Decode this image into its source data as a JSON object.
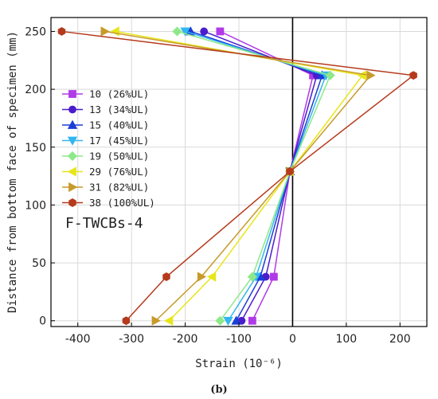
{
  "chart_data": {
    "type": "line",
    "xlabel": "Strain (10⁻⁶)",
    "ylabel": "Distance from bottom face of specimen (mm)",
    "xlim": [
      -450,
      250
    ],
    "ylim": [
      -5,
      262
    ],
    "xticks": [
      -400,
      -300,
      -200,
      -100,
      0,
      100,
      200
    ],
    "yticks": [
      0,
      50,
      100,
      150,
      200,
      250
    ],
    "grid": true,
    "legend_position": "left",
    "annotation": "F-TWCBs-4",
    "caption": "(b)",
    "x_reference_line": 0,
    "series": [
      {
        "name": "10 (26%UL)",
        "color": "#b03ae8",
        "marker": "square",
        "points": [
          [
            -75,
            0
          ],
          [
            -35,
            38
          ],
          [
            -5,
            129
          ],
          [
            38,
            212
          ],
          [
            -135,
            250
          ]
        ]
      },
      {
        "name": "13 (34%UL)",
        "color": "#4b1ccc",
        "marker": "circle",
        "points": [
          [
            -95,
            0
          ],
          [
            -50,
            38
          ],
          [
            -5,
            129
          ],
          [
            45,
            212
          ],
          [
            -165,
            250
          ]
        ]
      },
      {
        "name": "15 (40%UL)",
        "color": "#1b3fd6",
        "marker": "triangle-up",
        "points": [
          [
            -105,
            0
          ],
          [
            -60,
            38
          ],
          [
            -5,
            129
          ],
          [
            55,
            212
          ],
          [
            -190,
            250
          ]
        ]
      },
      {
        "name": "17 (45%UL)",
        "color": "#33b6ef",
        "marker": "triangle-down",
        "points": [
          [
            -120,
            0
          ],
          [
            -68,
            38
          ],
          [
            -5,
            129
          ],
          [
            62,
            212
          ],
          [
            -200,
            250
          ]
        ]
      },
      {
        "name": "19 (50%UL)",
        "color": "#8ee88a",
        "marker": "diamond",
        "points": [
          [
            -135,
            0
          ],
          [
            -75,
            38
          ],
          [
            -5,
            129
          ],
          [
            70,
            212
          ],
          [
            -215,
            250
          ]
        ]
      },
      {
        "name": "29 (76%UL)",
        "color": "#e6e61a",
        "marker": "triangle-left",
        "points": [
          [
            -230,
            0
          ],
          [
            -150,
            38
          ],
          [
            -5,
            129
          ],
          [
            130,
            212
          ],
          [
            -330,
            250
          ]
        ]
      },
      {
        "name": "31 (82%UL)",
        "color": "#c89a2a",
        "marker": "triangle-right",
        "points": [
          [
            -255,
            0
          ],
          [
            -170,
            38
          ],
          [
            -5,
            129
          ],
          [
            145,
            212
          ],
          [
            -350,
            250
          ]
        ]
      },
      {
        "name": "38 (100%UL)",
        "color": "#b53a1c",
        "marker": "hexagon",
        "points": [
          [
            -310,
            0
          ],
          [
            -235,
            38
          ],
          [
            -5,
            129
          ],
          [
            225,
            212
          ],
          [
            -430,
            250
          ]
        ]
      }
    ]
  }
}
